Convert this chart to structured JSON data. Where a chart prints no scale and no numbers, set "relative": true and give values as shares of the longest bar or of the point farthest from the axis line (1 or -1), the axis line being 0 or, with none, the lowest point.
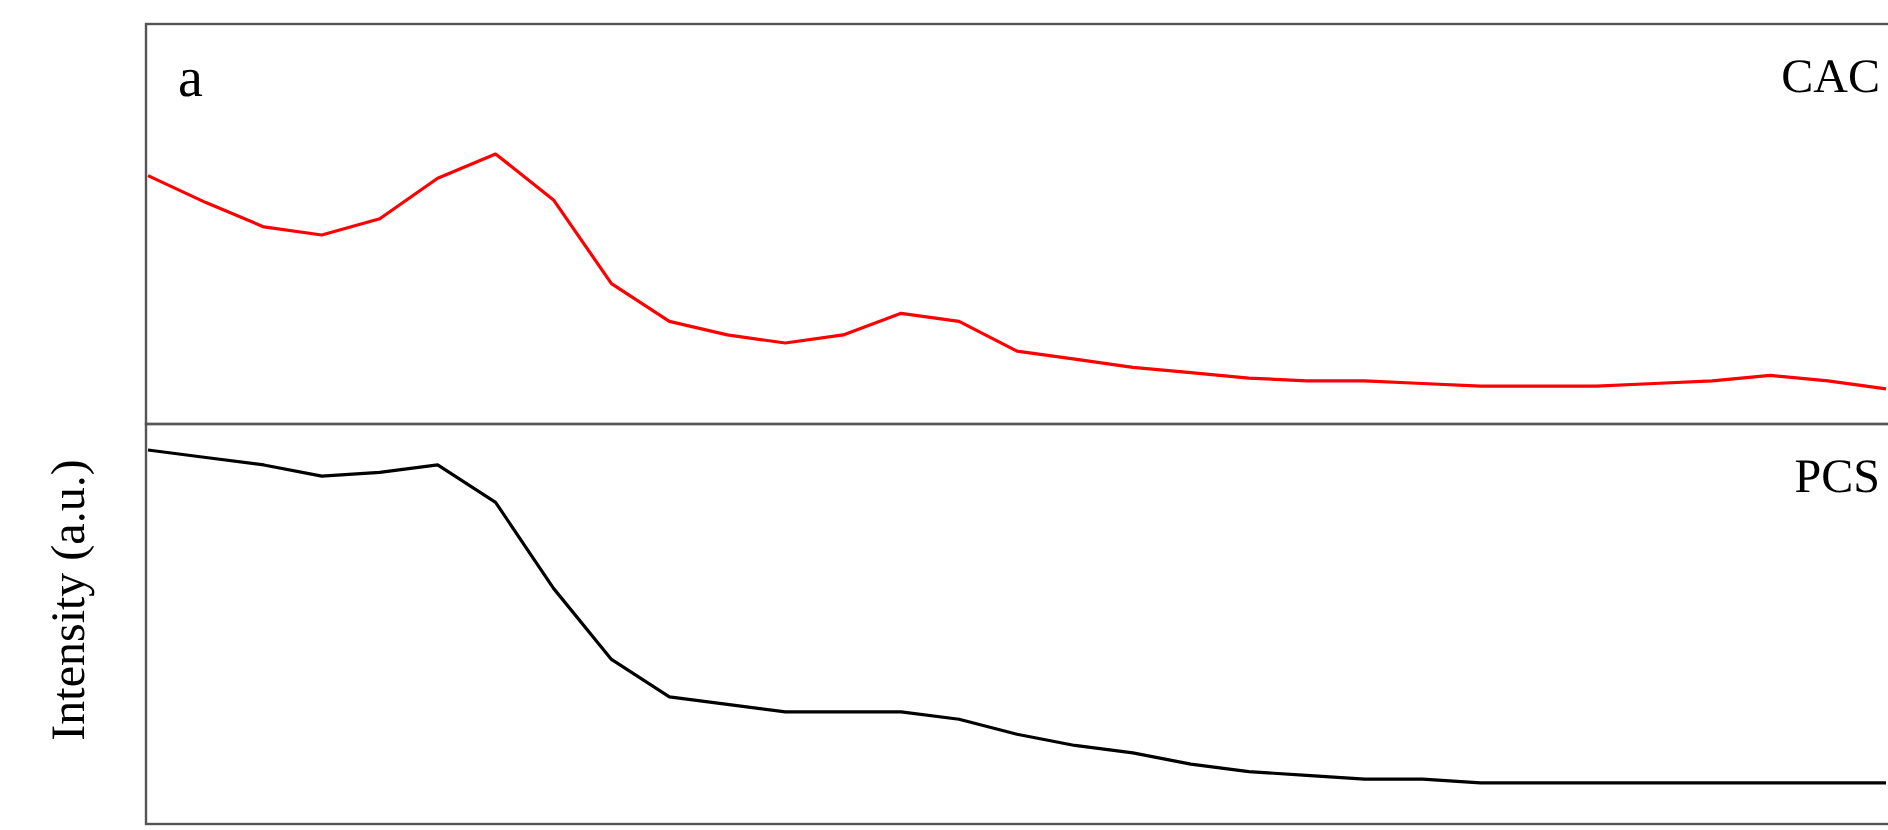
{
  "chart_data": [
    {
      "type": "line",
      "relative": true,
      "annotations": [
        "a"
      ],
      "grid": false,
      "legend": false,
      "categories": [
        null,
        null,
        null,
        null,
        null,
        null,
        null,
        null,
        null,
        null,
        null,
        null,
        null,
        null,
        null,
        null,
        null,
        null,
        null,
        null,
        null,
        null,
        null,
        null,
        null,
        null,
        null,
        null,
        null,
        null,
        null
      ],
      "series": [
        {
          "name": "CAC",
          "color": "#ff0000",
          "values": [
            0.92,
            0.82,
            0.73,
            0.7,
            0.76,
            0.91,
            1.0,
            0.83,
            0.52,
            0.38,
            0.33,
            0.3,
            0.33,
            0.41,
            0.38,
            0.27,
            0.24,
            0.21,
            0.19,
            0.17,
            0.16,
            0.16,
            0.15,
            0.14,
            0.14,
            0.14,
            0.15,
            0.16,
            0.18,
            0.16,
            0.13
          ]
        }
      ]
    },
    {
      "type": "line",
      "relative": true,
      "ylabel": "Intensity (a.u.)",
      "grid": false,
      "legend": false,
      "categories": [
        null,
        null,
        null,
        null,
        null,
        null,
        null,
        null,
        null,
        null,
        null,
        null,
        null,
        null,
        null,
        null,
        null,
        null,
        null,
        null,
        null,
        null,
        null,
        null,
        null,
        null,
        null,
        null,
        null,
        null,
        null
      ],
      "series": [
        {
          "name": "PCS",
          "color": "#000000",
          "values": [
            1.0,
            0.98,
            0.96,
            0.93,
            0.94,
            0.96,
            0.86,
            0.63,
            0.44,
            0.34,
            0.32,
            0.3,
            0.3,
            0.3,
            0.28,
            0.24,
            0.21,
            0.19,
            0.16,
            0.14,
            0.13,
            0.12,
            0.12,
            0.11,
            0.11,
            0.11,
            0.11,
            0.11,
            0.11,
            0.11,
            0.11
          ]
        }
      ]
    }
  ]
}
